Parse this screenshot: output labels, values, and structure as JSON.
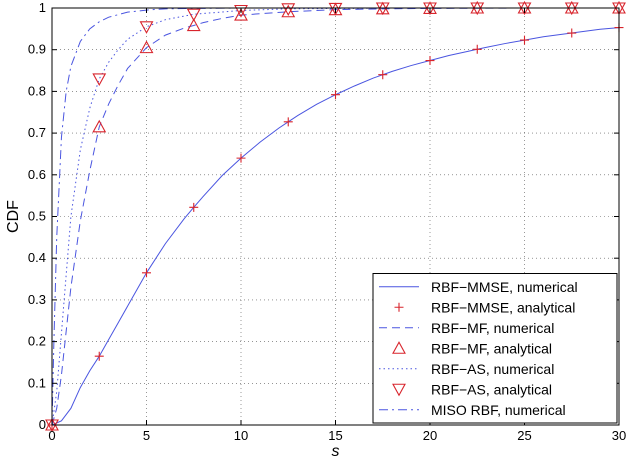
{
  "chart_data": {
    "type": "line",
    "title": "",
    "xlabel": "s",
    "ylabel": "CDF",
    "xlim": [
      0,
      30
    ],
    "ylim": [
      0,
      1
    ],
    "x_ticks": [
      "0",
      "5",
      "10",
      "15",
      "20",
      "25",
      "30"
    ],
    "y_ticks": [
      "0",
      "0.1",
      "0.2",
      "0.3",
      "0.4",
      "0.5",
      "0.6",
      "0.7",
      "0.8",
      "0.9",
      "1"
    ],
    "grid": true,
    "legend_position": "bottom-right",
    "series": [
      {
        "name": "RBF−MMSE, numerical",
        "style": "solid",
        "color": "#4a55e0",
        "x": [
          0,
          0.5,
          1,
          1.5,
          2,
          2.5,
          3,
          3.5,
          4,
          5,
          6,
          7,
          7.5,
          8,
          9,
          10,
          11,
          12,
          12.5,
          13,
          14,
          15,
          16,
          17,
          17.5,
          18,
          19,
          20,
          21,
          22,
          22.5,
          23,
          24,
          25,
          26,
          27,
          27.5,
          28,
          29,
          30
        ],
        "y": [
          0,
          0.01,
          0.04,
          0.09,
          0.13,
          0.165,
          0.205,
          0.245,
          0.285,
          0.365,
          0.435,
          0.495,
          0.522,
          0.548,
          0.598,
          0.64,
          0.678,
          0.712,
          0.727,
          0.742,
          0.769,
          0.792,
          0.813,
          0.832,
          0.84,
          0.848,
          0.862,
          0.874,
          0.886,
          0.896,
          0.901,
          0.906,
          0.915,
          0.923,
          0.931,
          0.937,
          0.94,
          0.943,
          0.949,
          0.953
        ]
      },
      {
        "name": "RBF−MMSE, analytical",
        "style": "marker-plus",
        "color": "#d8242c",
        "x": [
          0,
          2.5,
          5,
          7.5,
          10,
          12.5,
          15,
          17.5,
          20,
          22.5,
          25,
          27.5,
          30
        ],
        "y": [
          0,
          0.165,
          0.365,
          0.522,
          0.64,
          0.727,
          0.792,
          0.84,
          0.874,
          0.901,
          0.923,
          0.94,
          0.953
        ]
      },
      {
        "name": "RBF−MF, numerical",
        "style": "dashed",
        "color": "#4a55e0",
        "x": [
          0,
          0.25,
          0.5,
          1,
          1.5,
          2,
          2.5,
          3,
          3.5,
          4,
          5,
          6,
          7,
          7.5,
          8,
          9,
          10,
          12.5,
          15,
          17.5,
          20,
          25,
          30
        ],
        "y": [
          0,
          0.04,
          0.12,
          0.33,
          0.49,
          0.61,
          0.715,
          0.77,
          0.815,
          0.855,
          0.905,
          0.935,
          0.952,
          0.958,
          0.965,
          0.975,
          0.983,
          0.991,
          0.996,
          0.998,
          0.999,
          1,
          1
        ]
      },
      {
        "name": "RBF−MF, analytical",
        "style": "marker-triangle-up",
        "color": "#d8242c",
        "x": [
          0,
          2.5,
          5,
          7.5,
          10,
          12.5,
          15,
          17.5,
          20,
          22.5,
          25,
          27.5,
          30
        ],
        "y": [
          0,
          0.715,
          0.905,
          0.958,
          0.983,
          0.991,
          0.996,
          0.998,
          0.999,
          1,
          1,
          1,
          1
        ]
      },
      {
        "name": "RBF−AS, numerical",
        "style": "dotted",
        "color": "#4a55e0",
        "x": [
          0,
          0.25,
          0.5,
          1,
          1.5,
          2,
          2.5,
          3,
          3.5,
          4,
          5,
          6,
          7.5,
          10,
          12.5,
          15,
          20,
          25,
          30
        ],
        "y": [
          0,
          0.08,
          0.22,
          0.5,
          0.66,
          0.76,
          0.83,
          0.87,
          0.9,
          0.925,
          0.955,
          0.972,
          0.985,
          0.994,
          0.998,
          0.999,
          1,
          1,
          1
        ]
      },
      {
        "name": "RBF−AS, analytical",
        "style": "marker-triangle-down",
        "color": "#d8242c",
        "x": [
          0,
          2.5,
          5,
          7.5,
          10,
          12.5,
          15,
          17.5,
          20,
          22.5,
          25,
          27.5,
          30
        ],
        "y": [
          0,
          0.83,
          0.955,
          0.985,
          0.994,
          0.998,
          0.999,
          1,
          1,
          1,
          1,
          1,
          1
        ]
      },
      {
        "name": "MISO RBF, numerical",
        "style": "dashdot",
        "color": "#4a55e0",
        "x": [
          0,
          0.1,
          0.25,
          0.5,
          0.75,
          1,
          1.5,
          2,
          2.5,
          3,
          4,
          5,
          6,
          7.5,
          10,
          15,
          20,
          30
        ],
        "y": [
          0,
          0.2,
          0.45,
          0.69,
          0.8,
          0.86,
          0.92,
          0.95,
          0.967,
          0.978,
          0.99,
          0.995,
          0.998,
          0.999,
          1,
          1,
          1,
          1
        ]
      }
    ]
  }
}
